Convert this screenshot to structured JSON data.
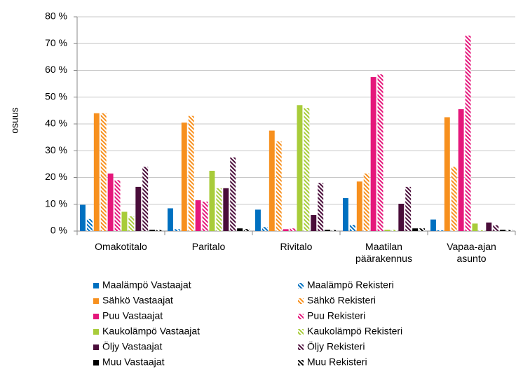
{
  "chart_data": {
    "type": "bar",
    "ylabel": "osuus",
    "categories": [
      "Omakotitalo",
      "Paritalo",
      "Rivitalo",
      "Maatilan\npäärakennus",
      "Vapaa-ajan\nasunto"
    ],
    "ylim": [
      0,
      80
    ],
    "yticks": [
      {
        "value": 0,
        "label": "0 %"
      },
      {
        "value": 10,
        "label": "10 %"
      },
      {
        "value": 20,
        "label": "20 %"
      },
      {
        "value": 30,
        "label": "30 %"
      },
      {
        "value": 40,
        "label": "40 %"
      },
      {
        "value": 50,
        "label": "50 %"
      },
      {
        "value": 60,
        "label": "60 %"
      },
      {
        "value": 70,
        "label": "70 %"
      },
      {
        "value": 80,
        "label": "80 %"
      }
    ],
    "grid": true,
    "legend": "bottom",
    "series": [
      {
        "name": "Maalämpö Vastaajat",
        "color": "#0070c0",
        "hatch": false,
        "values": [
          9.8,
          8.5,
          8,
          12.3,
          4.3
        ]
      },
      {
        "name": "Maalämpö Rekisteri",
        "color": "#0070c0",
        "hatch": true,
        "values": [
          4.5,
          0.7,
          1.5,
          2.3,
          0.3
        ]
      },
      {
        "name": "Sähkö Vastaajat",
        "color": "#f7901e",
        "hatch": false,
        "values": [
          44,
          40.5,
          37.5,
          18.5,
          42.5
        ]
      },
      {
        "name": "Sähkö Rekisteri",
        "color": "#f7901e",
        "hatch": true,
        "values": [
          44,
          43,
          33.5,
          21.5,
          24
        ]
      },
      {
        "name": "Puu Vastaajat",
        "color": "#e5177b",
        "hatch": false,
        "values": [
          21.5,
          11.5,
          0.7,
          57.5,
          45.5
        ]
      },
      {
        "name": "Puu Rekisteri",
        "color": "#e5177b",
        "hatch": true,
        "values": [
          19,
          11,
          1,
          58.5,
          73
        ]
      },
      {
        "name": "Kaukolämpö Vastaajat",
        "color": "#a8cc3a",
        "hatch": false,
        "values": [
          7.2,
          22.5,
          47,
          0.5,
          2.8
        ]
      },
      {
        "name": "Kaukolämpö Rekisteri",
        "color": "#a8cc3a",
        "hatch": true,
        "values": [
          5.5,
          16,
          46,
          0.5,
          0.3
        ]
      },
      {
        "name": "Öljy Vastaajat",
        "color": "#4a0d3a",
        "hatch": false,
        "values": [
          16.5,
          16,
          6,
          10.2,
          3.2
        ]
      },
      {
        "name": "Öljy Rekisteri",
        "color": "#4a0d3a",
        "hatch": true,
        "values": [
          24,
          27.5,
          18,
          16.5,
          2.2
        ]
      },
      {
        "name": "Muu Vastaajat",
        "color": "#000000",
        "hatch": false,
        "values": [
          0.5,
          1,
          0.5,
          1,
          0.5
        ]
      },
      {
        "name": "Muu Rekisteri",
        "color": "#000000",
        "hatch": true,
        "values": [
          0.4,
          0.8,
          0.4,
          1,
          0.4
        ]
      }
    ]
  }
}
